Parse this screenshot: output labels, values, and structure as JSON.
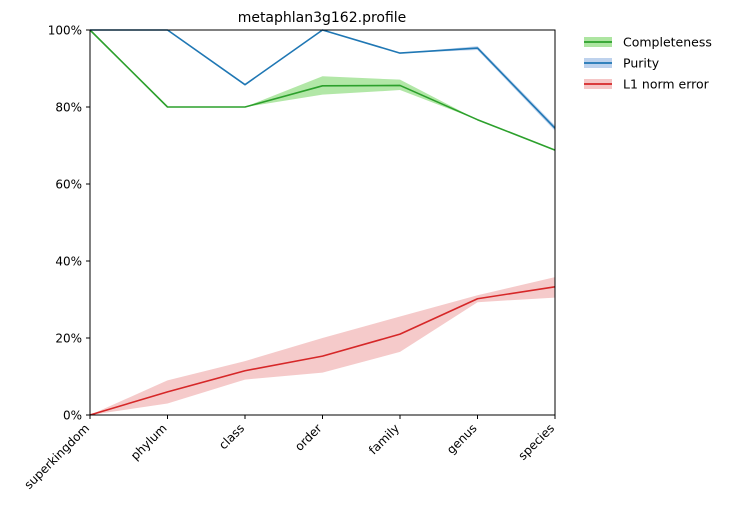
{
  "chart_data": {
    "type": "line",
    "title": "metaphlan3g162.profile",
    "xlabel": "",
    "ylabel": "",
    "categories": [
      "superkingdom",
      "phylum",
      "class",
      "order",
      "family",
      "genus",
      "species"
    ],
    "ylim": [
      0,
      1
    ],
    "yticks": [
      {
        "value": 0,
        "label": "0%"
      },
      {
        "value": 0.2,
        "label": "20%"
      },
      {
        "value": 0.4,
        "label": "40%"
      },
      {
        "value": 0.6,
        "label": "60%"
      },
      {
        "value": 0.8,
        "label": "80%"
      },
      {
        "value": 1.0,
        "label": "100%"
      }
    ],
    "grid": false,
    "legend_position": "outside-top-right",
    "series": [
      {
        "name": "Completeness",
        "color": "#2ca02c",
        "band_color": "#98df8a",
        "values": [
          1.0,
          0.8,
          0.8,
          0.855,
          0.856,
          0.767,
          0.688
        ],
        "lower": [
          1.0,
          0.8,
          0.8,
          0.832,
          0.844,
          0.767,
          0.688
        ],
        "upper": [
          1.0,
          0.8,
          0.8,
          0.88,
          0.871,
          0.767,
          0.688
        ]
      },
      {
        "name": "Purity",
        "color": "#1f77b4",
        "band_color": "#aec7e8",
        "values": [
          1.0,
          1.0,
          0.858,
          1.0,
          0.94,
          0.953,
          0.745
        ],
        "lower": [
          1.0,
          1.0,
          0.858,
          1.0,
          0.94,
          0.948,
          0.738
        ],
        "upper": [
          1.0,
          1.0,
          0.858,
          1.0,
          0.94,
          0.958,
          0.752
        ]
      },
      {
        "name": "L1 norm error",
        "color": "#d62728",
        "band_color": "#f2b8b8",
        "values": [
          0.0,
          0.06,
          0.115,
          0.153,
          0.21,
          0.302,
          0.333
        ],
        "lower": [
          0.0,
          0.03,
          0.092,
          0.11,
          0.164,
          0.293,
          0.305
        ],
        "upper": [
          0.0,
          0.09,
          0.14,
          0.2,
          0.256,
          0.311,
          0.358
        ]
      }
    ]
  }
}
